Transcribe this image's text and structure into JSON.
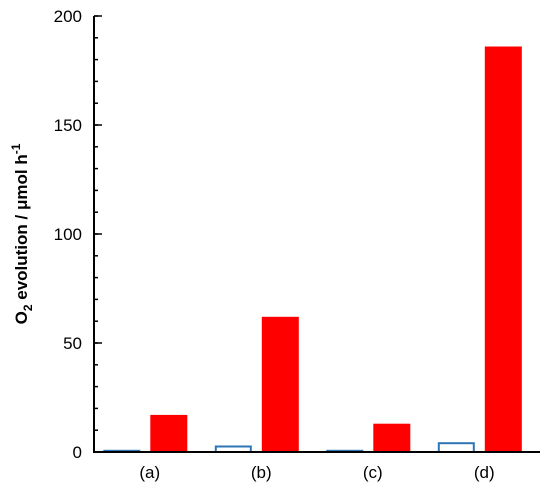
{
  "chart_data": {
    "type": "bar",
    "categories": [
      "(a)",
      "(b)",
      "(c)",
      "(d)"
    ],
    "series": [
      {
        "values": [
          1,
          3,
          1,
          4.5
        ],
        "style": "outline",
        "color": "#2E75B6"
      },
      {
        "values": [
          17,
          62,
          13,
          186
        ],
        "style": "filled",
        "color": "#FF0000"
      }
    ],
    "ylabel": {
      "prefix": "O",
      "subscript": "2",
      "middle": " evolution / μmol h",
      "superscript": "-1"
    },
    "ylim": [
      0,
      200
    ],
    "yticks": [
      "0",
      "50",
      "100",
      "150",
      "200"
    ],
    "minor_tick_step": 10,
    "grid": false
  }
}
